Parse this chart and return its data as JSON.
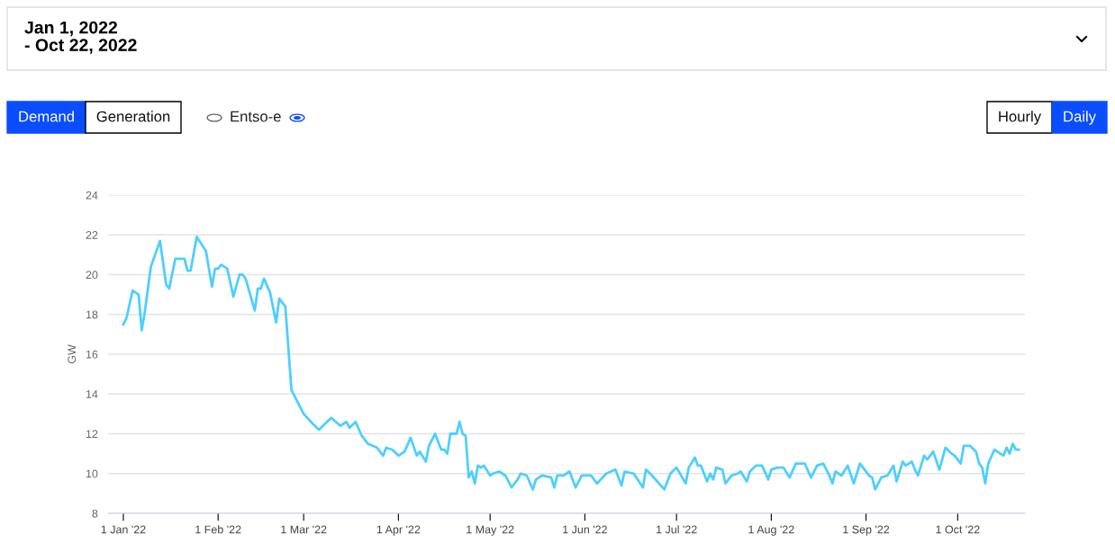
{
  "chart_data": {
    "type": "line",
    "title": "Jan 1, 2022\n- Oct 22, 2022",
    "ylabel": "GW",
    "annotations": [
      "Demand",
      "Generation",
      "Entso-e",
      "Hourly",
      "Daily"
    ],
    "xlim": [
      "2021-12-27",
      "2022-10-23"
    ],
    "xticks": [
      {
        "value": "2022-01-01",
        "label": "1 Jan '22"
      },
      {
        "value": "2022-02-01",
        "label": "1 Feb '22"
      },
      {
        "value": "2022-03-01",
        "label": "1 Mar '22"
      },
      {
        "value": "2022-04-01",
        "label": "1 Apr '22"
      },
      {
        "value": "2022-05-01",
        "label": "1 May '22"
      },
      {
        "value": "2022-06-01",
        "label": "1 Jun '22"
      },
      {
        "value": "2022-07-01",
        "label": "1 Jul '22"
      },
      {
        "value": "2022-08-01",
        "label": "1 Aug '22"
      },
      {
        "value": "2022-09-01",
        "label": "1 Sep '22"
      },
      {
        "value": "2022-10-01",
        "label": "1 Oct '22"
      }
    ],
    "ylim": [
      8,
      24
    ],
    "yticks": [
      8,
      10,
      12,
      14,
      16,
      18,
      20,
      22,
      24
    ],
    "grid": "y",
    "legend": false,
    "marker": "none",
    "line_style": "solid",
    "series": [
      {
        "color": "#4dcfff",
        "x": [
          "2022-01-01",
          "2022-01-02",
          "2022-01-04",
          "2022-01-06",
          "2022-01-07",
          "2022-01-08",
          "2022-01-10",
          "2022-01-13",
          "2022-01-15",
          "2022-01-16",
          "2022-01-18",
          "2022-01-21",
          "2022-01-22",
          "2022-01-23",
          "2022-01-25",
          "2022-01-28",
          "2022-01-30",
          "2022-01-31",
          "2022-02-01",
          "2022-02-02",
          "2022-02-04",
          "2022-02-06",
          "2022-02-08",
          "2022-02-09",
          "2022-02-10",
          "2022-02-13",
          "2022-02-14",
          "2022-02-15",
          "2022-02-16",
          "2022-02-18",
          "2022-02-20",
          "2022-02-21",
          "2022-02-23",
          "2022-02-25",
          "2022-03-01",
          "2022-03-04",
          "2022-03-06",
          "2022-03-10",
          "2022-03-13",
          "2022-03-15",
          "2022-03-16",
          "2022-03-18",
          "2022-03-20",
          "2022-03-22",
          "2022-03-25",
          "2022-03-27",
          "2022-03-28",
          "2022-03-30",
          "2022-04-01",
          "2022-04-03",
          "2022-04-05",
          "2022-04-07",
          "2022-04-08",
          "2022-04-10",
          "2022-04-11",
          "2022-04-13",
          "2022-04-15",
          "2022-04-16",
          "2022-04-17",
          "2022-04-18",
          "2022-04-20",
          "2022-04-21",
          "2022-04-22",
          "2022-04-23",
          "2022-04-24",
          "2022-04-25",
          "2022-04-26",
          "2022-04-27",
          "2022-04-28",
          "2022-04-29",
          "2022-05-01",
          "2022-05-02",
          "2022-05-04",
          "2022-05-06",
          "2022-05-08",
          "2022-05-10",
          "2022-05-11",
          "2022-05-13",
          "2022-05-15",
          "2022-05-16",
          "2022-05-18",
          "2022-05-21",
          "2022-05-22",
          "2022-05-23",
          "2022-05-25",
          "2022-05-27",
          "2022-05-29",
          "2022-05-31",
          "2022-06-03",
          "2022-06-05",
          "2022-06-08",
          "2022-06-11",
          "2022-06-13",
          "2022-06-14",
          "2022-06-17",
          "2022-06-20",
          "2022-06-21",
          "2022-06-23",
          "2022-06-27",
          "2022-06-29",
          "2022-07-01",
          "2022-07-04",
          "2022-07-05",
          "2022-07-07",
          "2022-07-08",
          "2022-07-09",
          "2022-07-11",
          "2022-07-12",
          "2022-07-13",
          "2022-07-14",
          "2022-07-16",
          "2022-07-17",
          "2022-07-19",
          "2022-07-21",
          "2022-07-22",
          "2022-07-24",
          "2022-07-25",
          "2022-07-27",
          "2022-07-29",
          "2022-07-31",
          "2022-08-01",
          "2022-08-03",
          "2022-08-05",
          "2022-08-07",
          "2022-08-09",
          "2022-08-11",
          "2022-08-12",
          "2022-08-14",
          "2022-08-16",
          "2022-08-18",
          "2022-08-20",
          "2022-08-21",
          "2022-08-22",
          "2022-08-24",
          "2022-08-26",
          "2022-08-28",
          "2022-08-30",
          "2022-09-02",
          "2022-09-03",
          "2022-09-04",
          "2022-09-06",
          "2022-09-08",
          "2022-09-10",
          "2022-09-11",
          "2022-09-13",
          "2022-09-14",
          "2022-09-16",
          "2022-09-17",
          "2022-09-18",
          "2022-09-20",
          "2022-09-21",
          "2022-09-23",
          "2022-09-25",
          "2022-09-27",
          "2022-09-29",
          "2022-09-30",
          "2022-10-02",
          "2022-10-03",
          "2022-10-05",
          "2022-10-07",
          "2022-10-08",
          "2022-10-09",
          "2022-10-10",
          "2022-10-11",
          "2022-10-13",
          "2022-10-16",
          "2022-10-17",
          "2022-10-18",
          "2022-10-19",
          "2022-10-20",
          "2022-10-21"
        ],
        "values": [
          17.5,
          17.8,
          19.2,
          19.0,
          17.2,
          18.1,
          20.4,
          21.7,
          19.5,
          19.3,
          20.8,
          20.8,
          20.2,
          20.2,
          21.9,
          21.2,
          19.4,
          20.3,
          20.3,
          20.5,
          20.3,
          18.9,
          20.0,
          20.0,
          19.8,
          18.2,
          19.3,
          19.3,
          19.8,
          19.1,
          17.6,
          18.8,
          18.4,
          14.2,
          13.0,
          12.5,
          12.2,
          12.8,
          12.4,
          12.6,
          12.3,
          12.6,
          11.9,
          11.5,
          11.3,
          10.9,
          11.3,
          11.2,
          10.9,
          11.1,
          11.8,
          10.9,
          11.1,
          10.6,
          11.4,
          12.0,
          11.2,
          11.2,
          11.0,
          12.0,
          12.0,
          12.6,
          12.0,
          11.9,
          9.8,
          10.1,
          9.5,
          10.4,
          10.3,
          10.4,
          9.9,
          10.0,
          10.1,
          9.9,
          9.3,
          9.7,
          10.0,
          9.9,
          9.2,
          9.7,
          9.9,
          9.8,
          9.3,
          9.9,
          9.9,
          10.1,
          9.3,
          9.9,
          9.9,
          9.5,
          10.0,
          10.2,
          9.4,
          10.1,
          10.0,
          9.3,
          10.2,
          9.9,
          9.2,
          10.0,
          10.3,
          9.5,
          10.3,
          10.8,
          10.4,
          10.4,
          9.6,
          10.0,
          9.7,
          10.3,
          10.2,
          9.5,
          9.9,
          10.0,
          10.1,
          9.6,
          10.1,
          10.4,
          10.4,
          9.7,
          10.2,
          10.3,
          10.3,
          9.8,
          10.5,
          10.5,
          10.5,
          9.8,
          10.4,
          10.5,
          9.9,
          9.5,
          10.1,
          9.9,
          10.4,
          9.5,
          10.5,
          9.9,
          9.8,
          9.2,
          9.8,
          9.9,
          10.4,
          9.6,
          10.6,
          10.4,
          10.6,
          10.2,
          9.9,
          10.9,
          10.7,
          11.1,
          10.2,
          11.3,
          11.0,
          10.9,
          10.5,
          11.4,
          11.4,
          11.1,
          10.5,
          10.3,
          9.5,
          10.5,
          11.2,
          10.9,
          11.3,
          11.0,
          11.5,
          11.2,
          11.2
        ]
      }
    ]
  }
}
